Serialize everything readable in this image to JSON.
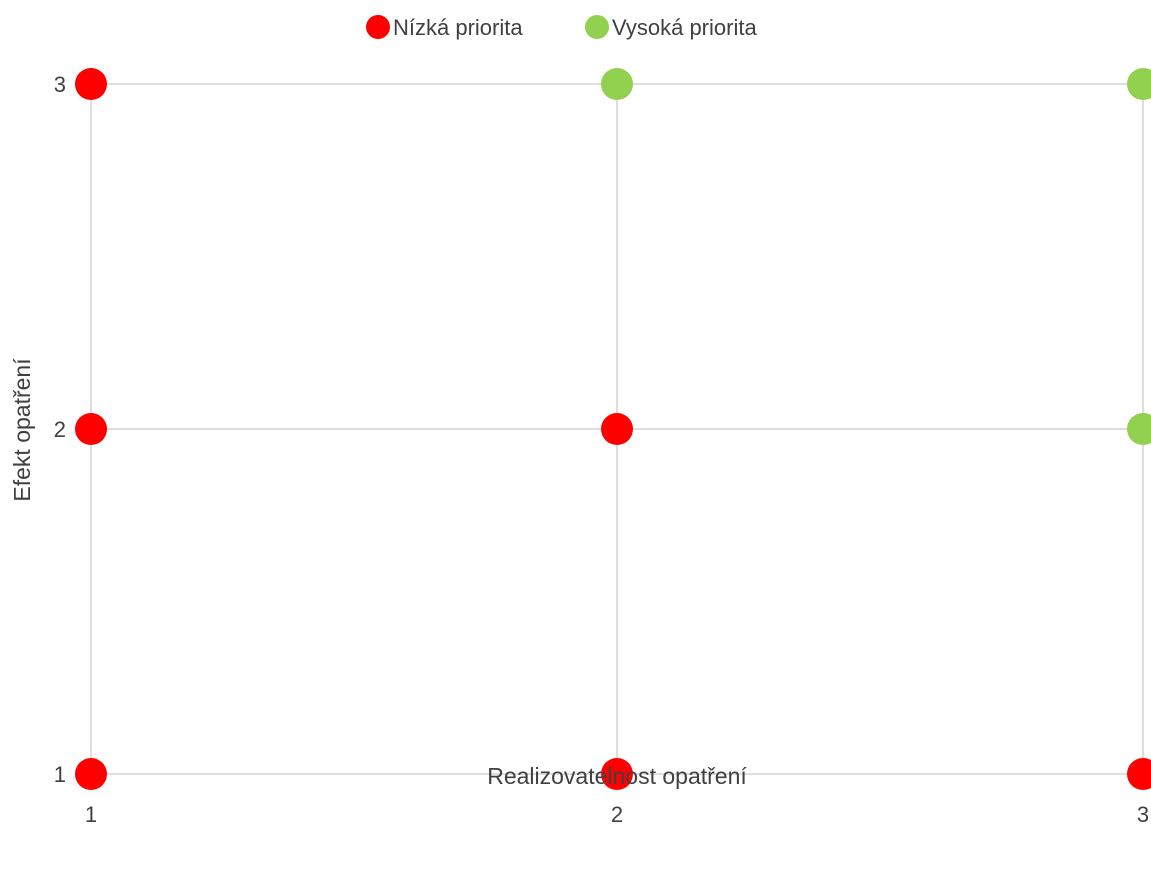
{
  "chart_data": {
    "type": "scatter",
    "title": "",
    "xlabel": "Realizovatelnost opatření",
    "ylabel": "Efekt opatření",
    "xlim": [
      1,
      3
    ],
    "ylim": [
      1,
      3
    ],
    "xticks": [
      1,
      2,
      3
    ],
    "yticks": [
      1,
      2,
      3
    ],
    "grid": true,
    "legend_position": "top",
    "series": [
      {
        "name": "Nízká priorita",
        "color": "#ff0000",
        "points": [
          {
            "x": 1,
            "y": 3
          },
          {
            "x": 1,
            "y": 2
          },
          {
            "x": 2,
            "y": 2
          },
          {
            "x": 1,
            "y": 1
          },
          {
            "x": 2,
            "y": 1
          },
          {
            "x": 3,
            "y": 1
          }
        ]
      },
      {
        "name": "Vysoká priorita",
        "color": "#92d050",
        "points": [
          {
            "x": 2,
            "y": 3
          },
          {
            "x": 3,
            "y": 3
          },
          {
            "x": 3,
            "y": 2
          }
        ]
      }
    ]
  }
}
